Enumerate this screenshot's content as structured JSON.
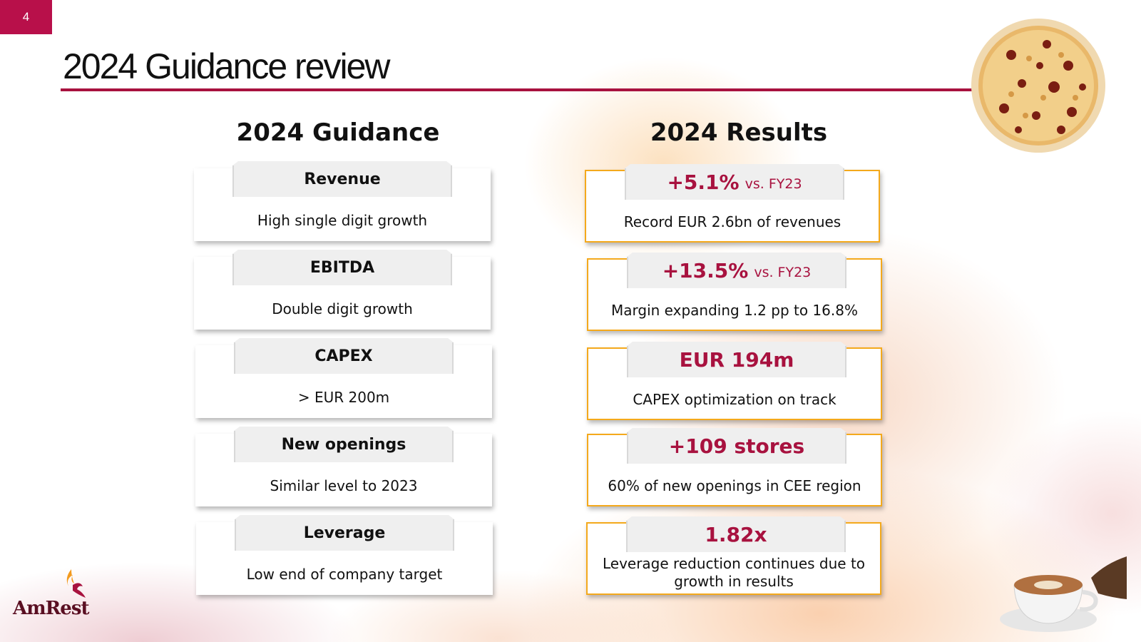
{
  "page": {
    "number": "4",
    "title": "2024 Guidance review"
  },
  "guidance": {
    "heading": "2024 Guidance",
    "cards": [
      {
        "label": "Revenue",
        "text": "High single digit growth"
      },
      {
        "label": "EBITDA",
        "text": "Double digit growth"
      },
      {
        "label": "CAPEX",
        "text": "> EUR 200m"
      },
      {
        "label": "New openings",
        "text": "Similar level to 2023"
      },
      {
        "label": "Leverage",
        "text": "Low end of company target"
      }
    ]
  },
  "results": {
    "heading": "2024 Results",
    "cards": [
      {
        "value": "+5.1%",
        "suffix": "vs. FY23",
        "text": "Record EUR 2.6bn of revenues"
      },
      {
        "value": "+13.5%",
        "suffix": "vs. FY23",
        "text": "Margin expanding 1.2 pp to 16.8%"
      },
      {
        "value": "EUR 194m",
        "suffix": "",
        "text": "CAPEX optimization on track"
      },
      {
        "value": "+109 stores",
        "suffix": "",
        "text": "60% of new openings in CEE region"
      },
      {
        "value": "1.82x",
        "suffix": "",
        "text": "Leverage reduction continues due to growth in results"
      }
    ]
  },
  "brand": {
    "logo_text": "AmRest",
    "accent_color": "#a8123f",
    "highlight_color": "#f4a91c"
  },
  "decor": {
    "pizza": "pizza-image",
    "coffee": "coffee-cup-image"
  }
}
